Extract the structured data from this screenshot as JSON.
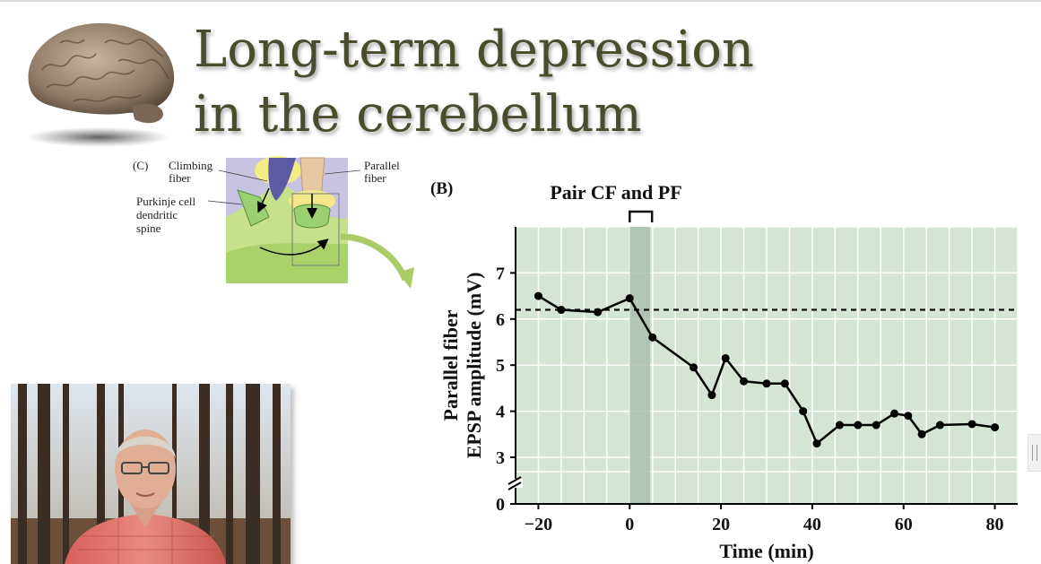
{
  "slide": {
    "title_line1": "Long-term depression",
    "title_line2": "in the cerebellum"
  },
  "panel_c": {
    "label": "(C)",
    "climbing_fiber": "Climbing",
    "climbing_fiber_2": "fiber",
    "parallel_fiber": "Parallel",
    "parallel_fiber_2": "fiber",
    "purkinje_1": "Purkinje cell",
    "purkinje_2": "dendritic",
    "purkinje_3": "spine"
  },
  "chart_data": {
    "type": "line",
    "panel_label": "(B)",
    "annotation": "Pair CF and PF",
    "xlabel": "Time (min)",
    "ylabel_line1": "Parallel fiber",
    "ylabel_line2": "EPSP amplitude (mV)",
    "xlim": [
      -25,
      85
    ],
    "ylim": [
      0,
      8
    ],
    "x_ticks": [
      -20,
      0,
      20,
      40,
      60,
      80
    ],
    "x_tick_labels": [
      "−20",
      "0",
      "20",
      "40",
      "60",
      "80"
    ],
    "y_ticks": [
      0,
      3,
      4,
      5,
      6,
      7
    ],
    "y_tick_labels": [
      "0",
      "3",
      "4",
      "5",
      "6",
      "7"
    ],
    "axis_break": true,
    "baseline": 6.2,
    "pairing_window": [
      0,
      4.5
    ],
    "grid": true,
    "series": [
      {
        "x": [
          -20,
          -15,
          -7,
          0,
          5,
          14,
          18,
          21,
          25,
          30,
          34,
          38,
          41,
          46,
          50,
          54,
          58,
          61,
          64,
          68,
          75,
          80
        ],
        "y": [
          6.5,
          6.2,
          6.15,
          6.45,
          5.6,
          4.95,
          4.35,
          5.15,
          4.65,
          4.6,
          4.6,
          4.0,
          3.3,
          3.7,
          3.7,
          3.7,
          3.95,
          3.9,
          3.5,
          3.7,
          3.72,
          3.65
        ]
      }
    ],
    "colors": {
      "plot_bg": "#d5e5d5",
      "grid": "#ffffff",
      "pairing_band": "#a9bfaf",
      "line": "#000000"
    }
  }
}
